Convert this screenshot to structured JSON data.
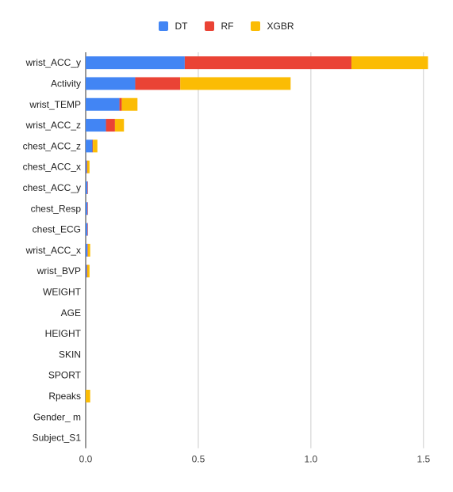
{
  "chart_data": {
    "type": "bar",
    "orientation": "horizontal",
    "stacked": true,
    "categories": [
      "wrist_ACC_y",
      "Activity",
      "wrist_TEMP",
      "wrist_ACC_z",
      "chest_ACC_z",
      "chest_ACC_x",
      "chest_ACC_y",
      "chest_Resp",
      "chest_ECG",
      "wrist_ACC_x",
      "wrist_BVP",
      "WEIGHT",
      "AGE",
      "HEIGHT",
      "SKIN",
      "SPORT",
      "Rpeaks",
      "Gender_ m",
      "Subject_S1"
    ],
    "series": [
      {
        "name": "DT",
        "color": "#4285f4",
        "values": [
          0.44,
          0.22,
          0.15,
          0.09,
          0.03,
          0.005,
          0.008,
          0.008,
          0.008,
          0.008,
          0.005,
          0,
          0,
          0,
          0,
          0,
          0,
          0,
          0
        ]
      },
      {
        "name": "RF",
        "color": "#ea4335",
        "values": [
          0.74,
          0.2,
          0.01,
          0.04,
          0.002,
          0.002,
          0.002,
          0.002,
          0.002,
          0.002,
          0.002,
          0,
          0,
          0,
          0,
          0,
          0,
          0,
          0
        ]
      },
      {
        "name": "XGBR",
        "color": "#fbbc04",
        "values": [
          0.34,
          0.49,
          0.07,
          0.04,
          0.02,
          0.01,
          0,
          0,
          0,
          0.01,
          0.01,
          0,
          0,
          0,
          0,
          0,
          0.02,
          0,
          0
        ]
      }
    ],
    "xticks": [
      "0.0",
      "0.5",
      "1.0",
      "1.5"
    ],
    "xlim": [
      0,
      1.55
    ],
    "grid": true,
    "legend_position": "top-center",
    "title": "",
    "xlabel": "",
    "ylabel": ""
  }
}
